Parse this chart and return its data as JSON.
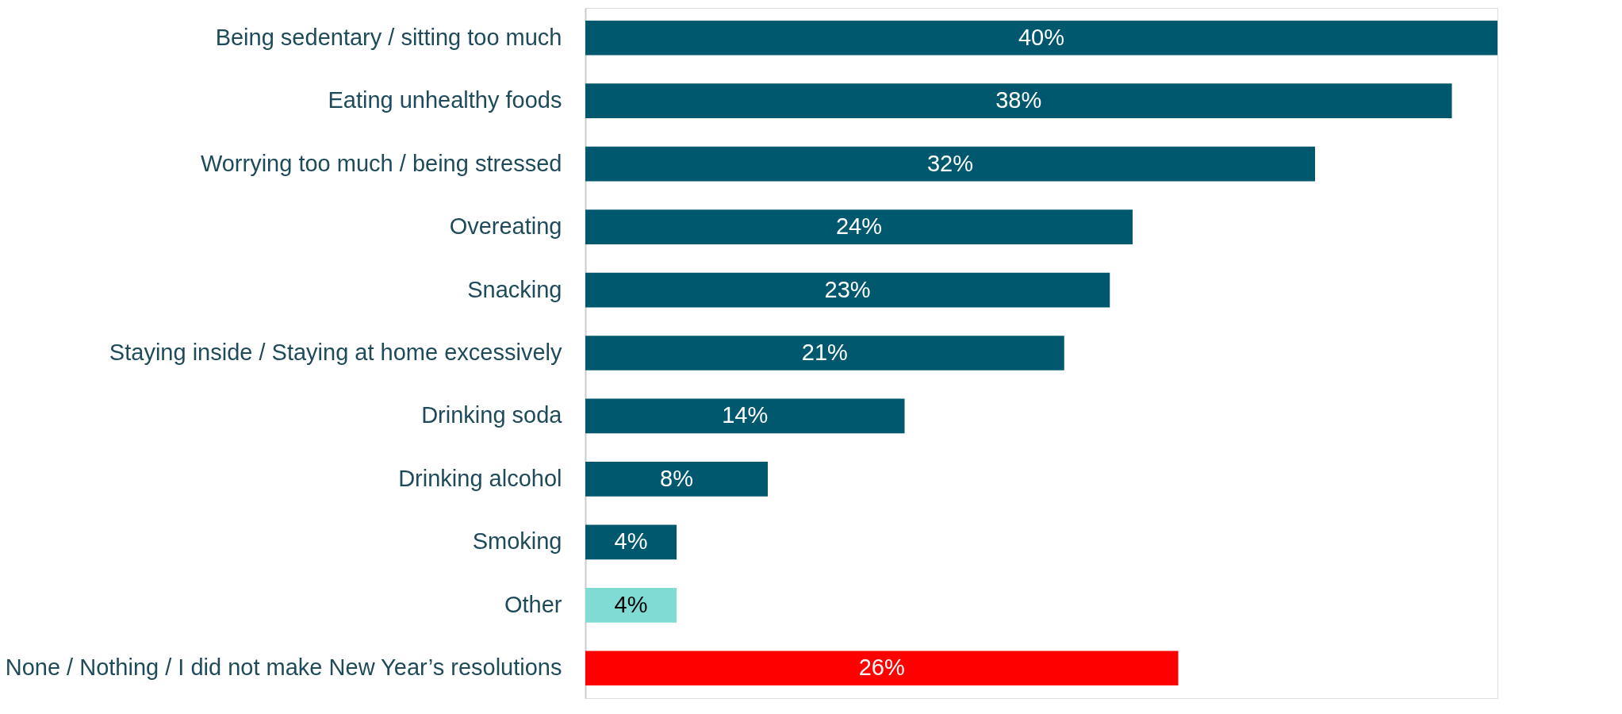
{
  "chart_data": {
    "type": "bar",
    "orientation": "horizontal",
    "tick_labels": "y",
    "grid": false,
    "categories": [
      "Being sedentary / sitting too much",
      "Eating unhealthy foods",
      "Worrying too much / being stressed",
      "Overeating",
      "Snacking",
      "Staying inside / Staying at home excessively",
      "Drinking soda",
      "Drinking alcohol",
      "Smoking",
      "Other",
      "None / Nothing / I did not make New Year’s resolutions"
    ],
    "values": [
      40,
      38,
      32,
      24,
      23,
      21,
      14,
      8,
      4,
      4,
      26
    ],
    "value_labels": [
      "40%",
      "38%",
      "32%",
      "24%",
      "23%",
      "21%",
      "14%",
      "8%",
      "4%",
      "4%",
      "26%"
    ],
    "colors": [
      "#00586f",
      "#00586f",
      "#00586f",
      "#00586f",
      "#00586f",
      "#00586f",
      "#00586f",
      "#00586f",
      "#00586f",
      "#7fdbd4",
      "#ff0000"
    ]
  }
}
